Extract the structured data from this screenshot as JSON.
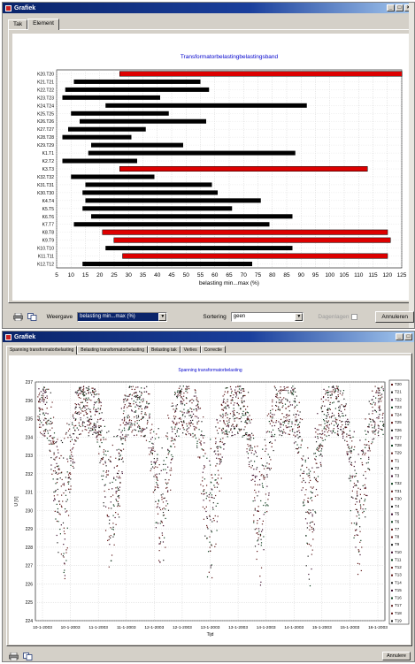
{
  "window1": {
    "title": "Grafiek",
    "tabs": [
      {
        "label": "Tak"
      },
      {
        "label": "Element"
      }
    ],
    "weergave_label": "Weergave",
    "weergave_value": "belasting min...max (%)",
    "sortering_label": "Sortering",
    "sortering_value": "geen",
    "dagenlagen_label": "Dagenlagen",
    "cancel_label": "Annuleren"
  },
  "window2": {
    "title": "Grafiek",
    "tabs": [
      {
        "label": "Spanning transformatorbelasting"
      },
      {
        "label": "Belasting transformatorbelasting"
      },
      {
        "label": "Belasting tak"
      },
      {
        "label": "Verlies"
      },
      {
        "label": "Correctie"
      }
    ],
    "cancel_label": "Annulere"
  },
  "colors": {
    "bar_normal": "#000000",
    "bar_overload": "#dd0000",
    "title_blue": "#0000cc",
    "titlebar": "#0a246a"
  },
  "chart_data": [
    {
      "type": "bar",
      "orientation": "horizontal",
      "title": "Transformatorbelastingbelastingsband",
      "xlabel": "belasting min...max (%)",
      "xlim": [
        5,
        125
      ],
      "xticks": [
        5,
        10,
        15,
        20,
        25,
        30,
        35,
        40,
        45,
        50,
        55,
        60,
        65,
        70,
        75,
        80,
        85,
        90,
        95,
        100,
        105,
        110,
        115,
        120,
        125
      ],
      "categories": [
        "K20.T20",
        "K21.T21",
        "K22.T22",
        "K23.T23",
        "K24.T24",
        "K25.T25",
        "K26.T26",
        "K27.T27",
        "K28.T28",
        "K29.T29",
        "K1.T1",
        "K2.T2",
        "K3.T3",
        "K32.T32",
        "K31.T31",
        "K30.T30",
        "K4.T4",
        "K5.T5",
        "K6.T6",
        "K7.T7",
        "K8.T8",
        "K9.T9",
        "K10.T10",
        "K11.T11",
        "K12.T12"
      ],
      "min": [
        27,
        11,
        8,
        7,
        22,
        10,
        13,
        9,
        7,
        17,
        16,
        7,
        27,
        10,
        15,
        14,
        15,
        14,
        17,
        11,
        21,
        25,
        22,
        28,
        14
      ],
      "max": [
        127,
        55,
        58,
        41,
        92,
        44,
        57,
        36,
        31,
        49,
        88,
        33,
        113,
        39,
        59,
        61,
        76,
        66,
        87,
        79,
        120,
        121,
        87,
        120,
        73
      ],
      "overloaded": [
        true,
        false,
        false,
        false,
        false,
        false,
        false,
        false,
        false,
        false,
        false,
        false,
        true,
        false,
        false,
        false,
        false,
        false,
        false,
        false,
        true,
        true,
        false,
        true,
        false
      ],
      "grid": true
    },
    {
      "type": "scatter",
      "title": "Spanning transformatorbelasting",
      "xlabel": "Tijd",
      "ylabel": "U [V]",
      "ylim": [
        224,
        237
      ],
      "yticks": [
        224,
        225,
        226,
        227,
        228,
        229,
        230,
        231,
        232,
        233,
        234,
        235,
        236,
        237
      ],
      "xticks": [
        "10-1-2003",
        "10-1-2003",
        "11-1-2003",
        "11-1-2003",
        "12-1-2003",
        "12-1-2003",
        "13-1-2003",
        "13-1-2003",
        "14-1-2003",
        "14-1-2003",
        "15-1-2003",
        "15-1-2003",
        "16-1-2003"
      ],
      "cycles": 7,
      "daily_max_v": 236.8,
      "daily_min_v": 224.2,
      "grid": true,
      "legend": "right",
      "series": [
        {
          "name": "T20"
        },
        {
          "name": "T21"
        },
        {
          "name": "T22"
        },
        {
          "name": "T23"
        },
        {
          "name": "T24"
        },
        {
          "name": "T25"
        },
        {
          "name": "T26"
        },
        {
          "name": "T27"
        },
        {
          "name": "T28"
        },
        {
          "name": "T29"
        },
        {
          "name": "T1"
        },
        {
          "name": "T2"
        },
        {
          "name": "T3"
        },
        {
          "name": "T32"
        },
        {
          "name": "T31"
        },
        {
          "name": "T30"
        },
        {
          "name": "T4"
        },
        {
          "name": "T5"
        },
        {
          "name": "T6"
        },
        {
          "name": "T7"
        },
        {
          "name": "T8"
        },
        {
          "name": "T9"
        },
        {
          "name": "T10"
        },
        {
          "name": "T11"
        },
        {
          "name": "T12"
        },
        {
          "name": "T13"
        },
        {
          "name": "T14"
        },
        {
          "name": "T15"
        },
        {
          "name": "T16"
        },
        {
          "name": "T17"
        },
        {
          "name": "T18"
        },
        {
          "name": "T19"
        }
      ]
    }
  ]
}
